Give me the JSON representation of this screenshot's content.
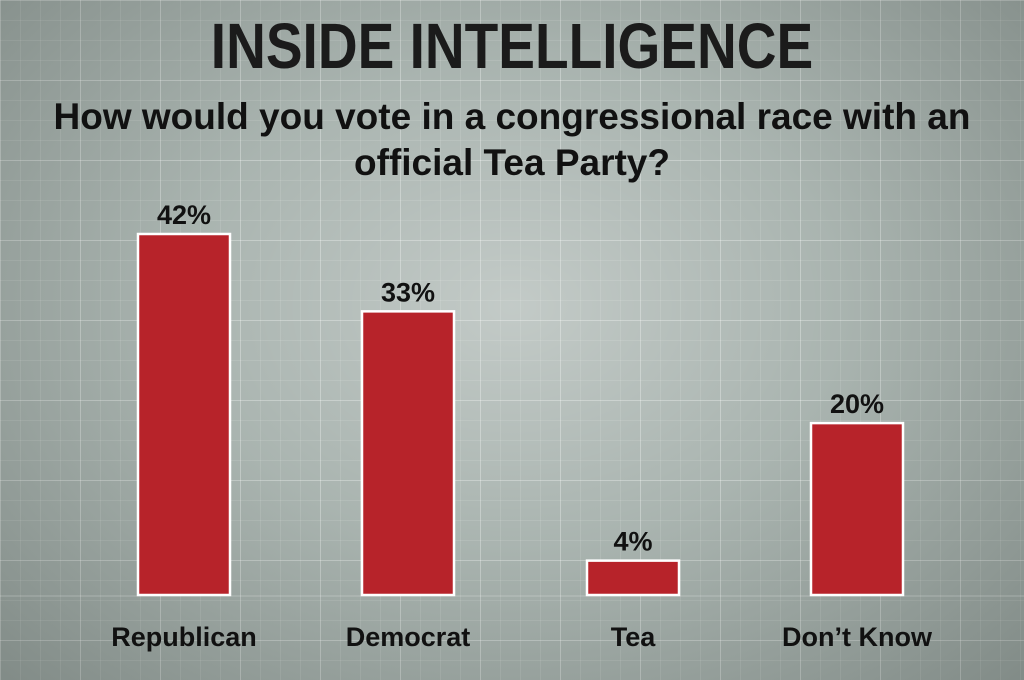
{
  "masthead": "INSIDE INTELLIGENCE",
  "chart_data": {
    "type": "bar",
    "title": "How would you vote in a congressional race with an official Tea Party?",
    "categories": [
      "Republican",
      "Democrat",
      "Tea",
      "Don’t Know"
    ],
    "values": [
      42,
      33,
      4,
      20
    ],
    "value_labels": [
      "42%",
      "33%",
      "4%",
      "20%"
    ],
    "unit": "%",
    "xlabel": "",
    "ylabel": "",
    "ylim": [
      0,
      42
    ],
    "grid": false,
    "legend": "none",
    "bar_color": "#b7232a"
  }
}
